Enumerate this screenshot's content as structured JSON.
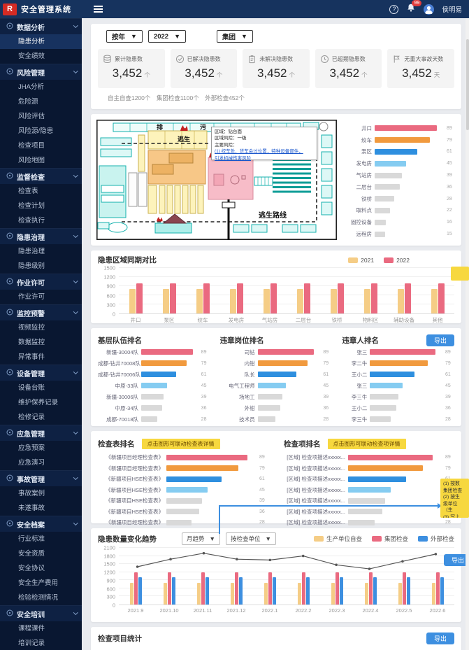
{
  "topbar": {
    "title": "安全管理系统",
    "help": "?",
    "badge": "99",
    "user": "侯明易"
  },
  "sidebar": {
    "active": "隐患分析",
    "groups": [
      {
        "label": "数据分析",
        "children": [
          "隐患分析",
          "安全绩效"
        ]
      },
      {
        "label": "风险管理",
        "children": [
          "JHA分析",
          "危险源",
          "风险评估",
          "风险源/隐患",
          "检查项目",
          "风险地图"
        ]
      },
      {
        "label": "监督检查",
        "children": [
          "检查表",
          "检查计划",
          "检查执行"
        ]
      },
      {
        "label": "隐患治理",
        "children": [
          "隐患治理",
          "隐患级别"
        ]
      },
      {
        "label": "作业许可",
        "children": [
          "作业许可"
        ]
      },
      {
        "label": "监控预警",
        "children": [
          "视频监控",
          "数据监控",
          "异常事件"
        ]
      },
      {
        "label": "设备管理",
        "children": [
          "设备台账",
          "维护保养记录",
          "检修记录"
        ]
      },
      {
        "label": "应急管理",
        "children": [
          "应急预案",
          "应急演习"
        ]
      },
      {
        "label": "事故管理",
        "children": [
          "事故案例",
          "未遂事故"
        ]
      },
      {
        "label": "安全档案",
        "children": [
          "行业标准",
          "安全资质",
          "安全协议",
          "安全生产费用",
          "检验检测情况"
        ]
      },
      {
        "label": "安全培训",
        "children": [
          "课程课件",
          "培训记录",
          "考试测评"
        ]
      }
    ]
  },
  "filters": {
    "period": "按年",
    "year": "2022",
    "scope": "集团"
  },
  "stats": {
    "cards": [
      {
        "label": "累计隐患数",
        "value": "3,452",
        "unit": "个"
      },
      {
        "label": "已解决隐患数",
        "value": "3,452",
        "unit": "个"
      },
      {
        "label": "未解决隐患数",
        "value": "3,452",
        "unit": "个"
      },
      {
        "label": "已超期隐患数",
        "value": "3,452",
        "unit": "个"
      },
      {
        "label": "无重大事故天数",
        "value": "3,452",
        "unit": "天"
      }
    ],
    "note": "自主自查1200个　集团检查1100个　外部检查452个"
  },
  "map": {
    "pai": "排",
    "wu": "污",
    "escape": "逃生",
    "escape_route": "逃生路线",
    "tooltip": {
      "l1": "区域：钻台面",
      "l2": "区域风险：一级",
      "l3": "主要风险：",
      "link1": "(1) 绞车处、货车会过位置，特种设备部件，",
      "link2": "引发机械伤害风险"
    }
  },
  "chips": {
    "sheet": "点击图形可联动检查表详情",
    "item": "点击图形可联动检查项详情"
  },
  "sticky_note": "(1) 按数\n集团检查\n(2) 按生\n级单位（生\n(3) 写上\n级别、外部\n查",
  "trend_controls": {
    "mode": "月趋势",
    "unit": "按检查单位"
  },
  "buttons": {
    "export": "导出"
  },
  "bottom": {
    "title": "检查项目统计"
  },
  "chart_data": [
    {
      "type": "hbar",
      "title": "",
      "categories": [
        "井口",
        "绞车",
        "泵区",
        "发电房",
        "气站房",
        "二层台",
        "铁桥",
        "取料点",
        "固控设备",
        "远程房"
      ],
      "values": [
        89,
        79,
        61,
        45,
        39,
        36,
        28,
        22,
        16,
        15
      ],
      "colors": [
        "#ea6a80",
        "#f19a3e",
        "#2e8fdf",
        "#85ccf1",
        "#d9d9d9",
        "#d9d9d9",
        "#d9d9d9",
        "#d9d9d9",
        "#d9d9d9",
        "#d9d9d9"
      ],
      "xlim": [
        0,
        100
      ]
    },
    {
      "type": "grouped_bar",
      "title": "隐患区域同期对比",
      "categories": [
        "井口",
        "泵区",
        "绞车",
        "发电房",
        "气站房",
        "二层台",
        "铁桥",
        "物料区",
        "辅助设备",
        "其他"
      ],
      "series": [
        {
          "name": "2021",
          "color": "#f5cd86",
          "values": [
            800,
            800,
            800,
            800,
            800,
            800,
            800,
            800,
            800,
            800
          ]
        },
        {
          "name": "2022",
          "color": "#ea6a80",
          "values": [
            1000,
            1000,
            1000,
            1000,
            1000,
            1000,
            1000,
            1000,
            1000,
            1000
          ]
        }
      ],
      "ylim": [
        0,
        1500
      ],
      "yticks": [
        0,
        300,
        600,
        900,
        1200,
        1500
      ],
      "legend": "top-right",
      "grid": true
    },
    {
      "type": "hbar",
      "title": "基层队伍排名",
      "categories": [
        "新疆-30004队",
        "成都-钻井70008队",
        "成都-钻井70006队",
        "中原-33队",
        "新疆-30006队",
        "中原-34队",
        "成都-70018队"
      ],
      "values": [
        89,
        79,
        61,
        45,
        39,
        36,
        28
      ],
      "colors": [
        "#ea6a80",
        "#f19a3e",
        "#2e8fdf",
        "#85ccf1",
        "#d9d9d9",
        "#d9d9d9",
        "#d9d9d9"
      ],
      "xlim": [
        0,
        100
      ]
    },
    {
      "type": "hbar",
      "title": "违章岗位排名",
      "categories": [
        "司钻",
        "内钳",
        "队长",
        "电气工程师",
        "场地工",
        "外钳",
        "技术员"
      ],
      "values": [
        89,
        79,
        61,
        45,
        39,
        36,
        28
      ],
      "colors": [
        "#ea6a80",
        "#f19a3e",
        "#2e8fdf",
        "#85ccf1",
        "#d9d9d9",
        "#d9d9d9",
        "#d9d9d9"
      ],
      "xlim": [
        0,
        100
      ]
    },
    {
      "type": "hbar",
      "title": "违章人排名",
      "categories": [
        "张三",
        "李二牛",
        "王小二",
        "张三",
        "李三牛",
        "王小二",
        "李三牛"
      ],
      "values": [
        89,
        79,
        61,
        45,
        39,
        36,
        28
      ],
      "colors": [
        "#ea6a80",
        "#f19a3e",
        "#2e8fdf",
        "#85ccf1",
        "#d9d9d9",
        "#d9d9d9",
        "#d9d9d9"
      ],
      "xlim": [
        0,
        100
      ]
    },
    {
      "type": "hbar",
      "title": "检查表排名",
      "categories": [
        "《新疆项目经理检查表》",
        "《新疆项目经理检查表》",
        "《新疆项目HSE检查表》",
        "《新疆项目HSE检查表》",
        "《新疆项目HSE检查表》",
        "《新疆项目HSE检查表》",
        "《新疆项目经理检查表》"
      ],
      "values": [
        89,
        79,
        61,
        45,
        39,
        36,
        28
      ],
      "colors": [
        "#ea6a80",
        "#f19a3e",
        "#2e8fdf",
        "#85ccf1",
        "#d9d9d9",
        "#d9d9d9",
        "#d9d9d9"
      ],
      "xlim": [
        0,
        100
      ]
    },
    {
      "type": "hbar",
      "title": "检查项排名",
      "categories": [
        "[区域] 检查项描述xxxxx...",
        "[区域] 检查项描述xxxxx...",
        "[区域] 检查项描述xxxxx...",
        "[区域] 检查项描述xxxxx...",
        "[区域] 检查项描述xxxxx...",
        "[区域] 检查项描述xxxxx...",
        "[区域] 检查项描述xxxxx..."
      ],
      "values": [
        89,
        79,
        61,
        45,
        39,
        36,
        28
      ],
      "colors": [
        "#ea6a80",
        "#f19a3e",
        "#2e8fdf",
        "#85ccf1",
        "#d9d9d9",
        "#d9d9d9",
        "#d9d9d9"
      ],
      "xlim": [
        0,
        100
      ]
    },
    {
      "type": "grouped_bar",
      "title": "隐患数量变化趋势",
      "categories": [
        "2021.9",
        "2021.10",
        "2021.11",
        "2021.12",
        "2022.1",
        "2022.2",
        "2022.3",
        "2022.4",
        "2022.5",
        "2022.6"
      ],
      "series": [
        {
          "name": "生产单位自查",
          "color": "#f5cd86",
          "values": [
            800,
            800,
            800,
            800,
            800,
            800,
            800,
            800,
            800,
            800
          ]
        },
        {
          "name": "集团检查",
          "color": "#ea6a80",
          "values": [
            1200,
            1200,
            1200,
            1200,
            1200,
            1200,
            1200,
            1200,
            1200,
            1200
          ]
        },
        {
          "name": "外部检查",
          "color": "#3d8fe0",
          "values": [
            1000,
            1000,
            1000,
            1000,
            1000,
            1000,
            1000,
            1000,
            1000,
            1000
          ]
        }
      ],
      "line": {
        "color": "#555555",
        "values": [
          1400,
          1680,
          1900,
          1680,
          1650,
          1800,
          1470,
          1320,
          1600,
          1870
        ]
      },
      "ylim": [
        0,
        2100
      ],
      "yticks": [
        0,
        300,
        600,
        900,
        1200,
        1500,
        1800,
        2100
      ],
      "legend": "top-right",
      "grid": true
    }
  ]
}
